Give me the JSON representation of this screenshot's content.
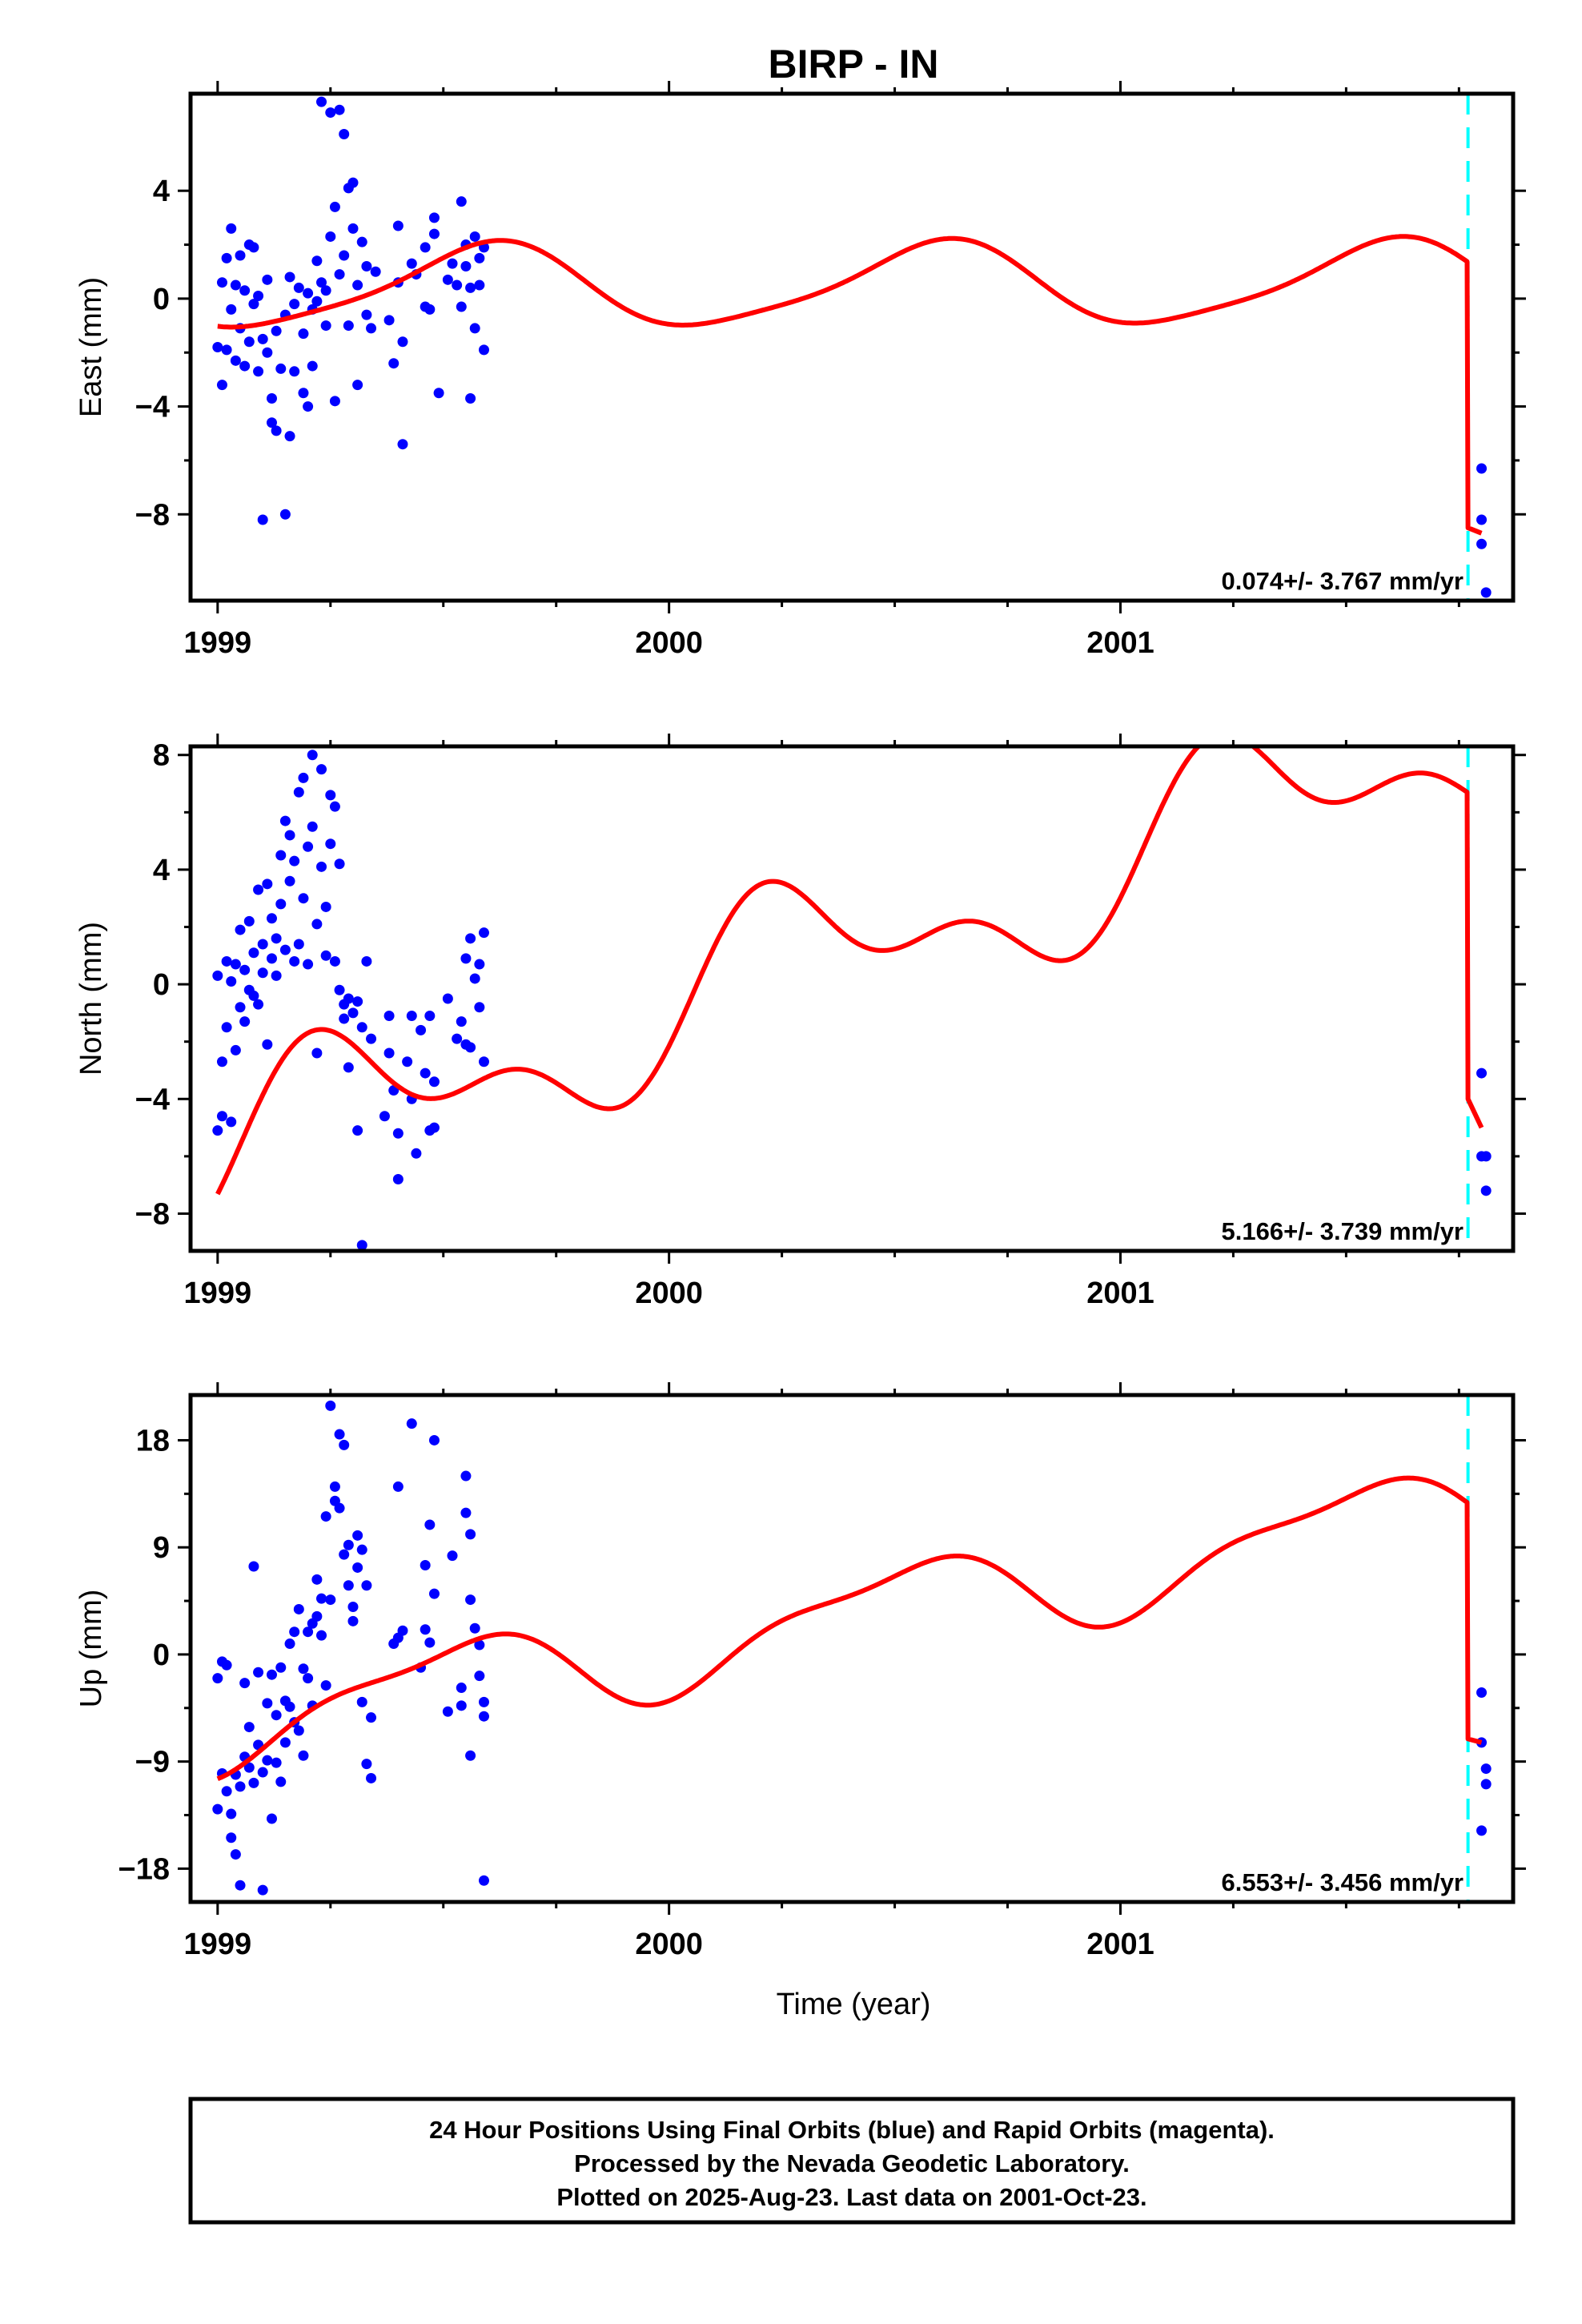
{
  "title": "BIRP - IN",
  "xlabel": "Time (year)",
  "x_tick_labels": [
    "1999",
    "2000",
    "2001"
  ],
  "footer": {
    "line1": "24 Hour Positions Using Final Orbits (blue) and Rapid Orbits (magenta).",
    "line2": "Processed by the Nevada Geodetic Laboratory.",
    "line3": "Plotted on 2025-Aug-23. Last data on 2001-Oct-23."
  },
  "colors": {
    "final_orbits": "#0000ff",
    "model": "#ff0000",
    "event": "#00ffff",
    "frame": "#000000"
  },
  "chart_data": [
    {
      "type": "scatter",
      "component": "East",
      "ylabel": "East (mm)",
      "xlim": [
        1998.94,
        2001.87
      ],
      "ylim": [
        -11.2,
        7.6
      ],
      "yticks": [
        -8,
        -4,
        0,
        4
      ],
      "ytick_labels": [
        "−8",
        "−4",
        "0",
        "4"
      ],
      "rate_label": "0.074+/- 3.767 mm/yr",
      "event_x": 2001.77,
      "points": [
        [
          1999.0,
          -1.8
        ],
        [
          1999.01,
          0.6
        ],
        [
          1999.01,
          -3.2
        ],
        [
          1999.02,
          -1.9
        ],
        [
          1999.02,
          1.5
        ],
        [
          1999.03,
          2.6
        ],
        [
          1999.03,
          -0.4
        ],
        [
          1999.04,
          0.5
        ],
        [
          1999.04,
          -2.3
        ],
        [
          1999.05,
          1.6
        ],
        [
          1999.05,
          -1.1
        ],
        [
          1999.06,
          0.3
        ],
        [
          1999.06,
          -2.5
        ],
        [
          1999.07,
          2.0
        ],
        [
          1999.07,
          -1.6
        ],
        [
          1999.08,
          -0.2
        ],
        [
          1999.08,
          1.9
        ],
        [
          1999.09,
          -2.7
        ],
        [
          1999.09,
          0.1
        ],
        [
          1999.1,
          -1.5
        ],
        [
          1999.1,
          -8.2
        ],
        [
          1999.11,
          -2.0
        ],
        [
          1999.11,
          0.7
        ],
        [
          1999.12,
          -3.7
        ],
        [
          1999.12,
          -4.6
        ],
        [
          1999.13,
          -1.2
        ],
        [
          1999.13,
          -4.9
        ],
        [
          1999.14,
          -2.6
        ],
        [
          1999.15,
          -8.0
        ],
        [
          1999.15,
          -0.6
        ],
        [
          1999.16,
          -5.1
        ],
        [
          1999.16,
          0.8
        ],
        [
          1999.17,
          -2.7
        ],
        [
          1999.17,
          -0.2
        ],
        [
          1999.18,
          0.4
        ],
        [
          1999.19,
          -1.3
        ],
        [
          1999.19,
          -3.5
        ],
        [
          1999.2,
          0.2
        ],
        [
          1999.2,
          -4.0
        ],
        [
          1999.21,
          -0.4
        ],
        [
          1999.21,
          -2.5
        ],
        [
          1999.22,
          1.4
        ],
        [
          1999.22,
          -0.1
        ],
        [
          1999.23,
          0.6
        ],
        [
          1999.23,
          7.3
        ],
        [
          1999.24,
          0.3
        ],
        [
          1999.24,
          -1.0
        ],
        [
          1999.25,
          6.9
        ],
        [
          1999.25,
          2.3
        ],
        [
          1999.26,
          3.4
        ],
        [
          1999.26,
          -3.8
        ],
        [
          1999.27,
          0.9
        ],
        [
          1999.27,
          7.0
        ],
        [
          1999.28,
          1.6
        ],
        [
          1999.28,
          6.1
        ],
        [
          1999.29,
          4.1
        ],
        [
          1999.29,
          -1.0
        ],
        [
          1999.3,
          2.6
        ],
        [
          1999.3,
          4.3
        ],
        [
          1999.31,
          -3.2
        ],
        [
          1999.31,
          0.5
        ],
        [
          1999.32,
          2.1
        ],
        [
          1999.33,
          -0.6
        ],
        [
          1999.33,
          1.2
        ],
        [
          1999.34,
          -1.1
        ],
        [
          1999.35,
          1.0
        ],
        [
          1999.38,
          -0.8
        ],
        [
          1999.39,
          -2.4
        ],
        [
          1999.4,
          2.7
        ],
        [
          1999.4,
          0.6
        ],
        [
          1999.41,
          -5.4
        ],
        [
          1999.41,
          -1.6
        ],
        [
          1999.43,
          1.3
        ],
        [
          1999.44,
          0.9
        ],
        [
          1999.46,
          1.9
        ],
        [
          1999.46,
          -0.3
        ],
        [
          1999.47,
          -0.4
        ],
        [
          1999.48,
          3.0
        ],
        [
          1999.48,
          2.4
        ],
        [
          1999.49,
          -3.5
        ],
        [
          1999.51,
          0.7
        ],
        [
          1999.52,
          1.3
        ],
        [
          1999.53,
          0.5
        ],
        [
          1999.54,
          -0.3
        ],
        [
          1999.54,
          3.6
        ],
        [
          1999.55,
          1.2
        ],
        [
          1999.55,
          2.0
        ],
        [
          1999.56,
          -3.7
        ],
        [
          1999.56,
          0.4
        ],
        [
          1999.57,
          -1.1
        ],
        [
          1999.57,
          2.3
        ],
        [
          1999.58,
          1.5
        ],
        [
          1999.58,
          0.5
        ],
        [
          1999.59,
          -1.9
        ],
        [
          1999.59,
          1.9
        ],
        [
          2001.8,
          -6.3
        ],
        [
          2001.8,
          -8.2
        ],
        [
          2001.8,
          -9.1
        ],
        [
          2001.81,
          -10.9
        ]
      ],
      "model_before": {
        "offset": 0.45,
        "slope": 0.074,
        "sin1": -0.85,
        "cos1": -1.25,
        "sin2": 0.25,
        "cos2": -0.15
      },
      "model_after": {
        "x": [
          2001.77,
          2001.8
        ],
        "y": [
          -8.5,
          -8.7
        ]
      }
    },
    {
      "type": "scatter",
      "component": "North",
      "ylabel": "North (mm)",
      "xlim": [
        1998.94,
        2001.87
      ],
      "ylim": [
        -9.3,
        8.3
      ],
      "yticks": [
        -8,
        -4,
        0,
        4,
        8
      ],
      "ytick_labels": [
        "−8",
        "−4",
        "0",
        "4",
        "8"
      ],
      "rate_label": "5.166+/- 3.739 mm/yr",
      "event_x": 2001.77,
      "points": [
        [
          1999.0,
          -5.1
        ],
        [
          1999.0,
          0.3
        ],
        [
          1999.01,
          -2.7
        ],
        [
          1999.01,
          -4.6
        ],
        [
          1999.02,
          -1.5
        ],
        [
          1999.02,
          0.8
        ],
        [
          1999.03,
          -4.8
        ],
        [
          1999.03,
          0.1
        ],
        [
          1999.04,
          -2.3
        ],
        [
          1999.04,
          0.7
        ],
        [
          1999.05,
          -0.8
        ],
        [
          1999.05,
          1.9
        ],
        [
          1999.06,
          -1.3
        ],
        [
          1999.06,
          0.5
        ],
        [
          1999.07,
          -0.2
        ],
        [
          1999.07,
          2.2
        ],
        [
          1999.08,
          -0.4
        ],
        [
          1999.08,
          1.1
        ],
        [
          1999.09,
          -0.7
        ],
        [
          1999.09,
          3.3
        ],
        [
          1999.1,
          0.4
        ],
        [
          1999.1,
          1.4
        ],
        [
          1999.11,
          -2.1
        ],
        [
          1999.11,
          3.5
        ],
        [
          1999.12,
          0.9
        ],
        [
          1999.12,
          2.3
        ],
        [
          1999.13,
          1.6
        ],
        [
          1999.13,
          0.3
        ],
        [
          1999.14,
          4.5
        ],
        [
          1999.14,
          2.8
        ],
        [
          1999.15,
          1.2
        ],
        [
          1999.15,
          5.7
        ],
        [
          1999.16,
          3.6
        ],
        [
          1999.16,
          5.2
        ],
        [
          1999.17,
          0.8
        ],
        [
          1999.17,
          4.3
        ],
        [
          1999.18,
          6.7
        ],
        [
          1999.18,
          1.4
        ],
        [
          1999.19,
          7.2
        ],
        [
          1999.19,
          3.0
        ],
        [
          1999.2,
          4.8
        ],
        [
          1999.2,
          0.7
        ],
        [
          1999.21,
          8.0
        ],
        [
          1999.21,
          5.5
        ],
        [
          1999.22,
          2.1
        ],
        [
          1999.22,
          -2.4
        ],
        [
          1999.23,
          7.5
        ],
        [
          1999.23,
          4.1
        ],
        [
          1999.24,
          2.7
        ],
        [
          1999.24,
          1.0
        ],
        [
          1999.25,
          4.9
        ],
        [
          1999.25,
          6.6
        ],
        [
          1999.26,
          0.8
        ],
        [
          1999.26,
          6.2
        ],
        [
          1999.27,
          4.2
        ],
        [
          1999.27,
          -0.2
        ],
        [
          1999.28,
          -1.2
        ],
        [
          1999.28,
          -0.7
        ],
        [
          1999.29,
          -2.9
        ],
        [
          1999.29,
          -0.5
        ],
        [
          1999.3,
          -1.0
        ],
        [
          1999.31,
          -0.6
        ],
        [
          1999.31,
          -5.1
        ],
        [
          1999.32,
          -9.1
        ],
        [
          1999.32,
          -1.5
        ],
        [
          1999.33,
          0.8
        ],
        [
          1999.34,
          -1.9
        ],
        [
          1999.37,
          -4.6
        ],
        [
          1999.38,
          -1.1
        ],
        [
          1999.38,
          -2.4
        ],
        [
          1999.39,
          -3.7
        ],
        [
          1999.4,
          -6.8
        ],
        [
          1999.4,
          -5.2
        ],
        [
          1999.42,
          -2.7
        ],
        [
          1999.43,
          -1.1
        ],
        [
          1999.43,
          -4.0
        ],
        [
          1999.44,
          -5.9
        ],
        [
          1999.45,
          -1.6
        ],
        [
          1999.46,
          -3.1
        ],
        [
          1999.47,
          -5.1
        ],
        [
          1999.47,
          -1.1
        ],
        [
          1999.48,
          -3.4
        ],
        [
          1999.48,
          -5.0
        ],
        [
          1999.51,
          -0.5
        ],
        [
          1999.53,
          -1.9
        ],
        [
          1999.54,
          -1.3
        ],
        [
          1999.55,
          0.9
        ],
        [
          1999.55,
          -2.1
        ],
        [
          1999.56,
          1.6
        ],
        [
          1999.56,
          -2.2
        ],
        [
          1999.57,
          0.2
        ],
        [
          1999.58,
          -0.8
        ],
        [
          1999.58,
          0.7
        ],
        [
          1999.59,
          -2.7
        ],
        [
          1999.59,
          1.8
        ],
        [
          2001.8,
          -3.1
        ],
        [
          2001.8,
          -6.0
        ],
        [
          2001.81,
          -7.2
        ],
        [
          2001.81,
          -6.0
        ]
      ],
      "model_before": {
        "offset": -0.85,
        "slope": 5.166,
        "sin1": 2.2,
        "cos1": -0.4,
        "sin2": 1.0,
        "cos2": -0.9
      },
      "model_after": {
        "x": [
          2001.77,
          2001.8
        ],
        "y": [
          -4.0,
          -5.0
        ]
      }
    },
    {
      "type": "scatter",
      "component": "Up",
      "ylabel": "Up (mm)",
      "xlim": [
        1998.94,
        2001.87
      ],
      "ylim": [
        -20.8,
        21.8
      ],
      "yticks": [
        -18,
        -9,
        0,
        9,
        18
      ],
      "ytick_labels": [
        "−18",
        "−9",
        "0",
        "9",
        "18"
      ],
      "rate_label": "6.553+/- 3.456 mm/yr",
      "event_x": 2001.77,
      "points": [
        [
          1999.0,
          -2.0
        ],
        [
          1999.0,
          -13.0
        ],
        [
          1999.01,
          -0.6
        ],
        [
          1999.01,
          -10.0
        ],
        [
          1999.02,
          -11.5
        ],
        [
          1999.02,
          -0.9
        ],
        [
          1999.03,
          -13.4
        ],
        [
          1999.03,
          -15.4
        ],
        [
          1999.04,
          -16.8
        ],
        [
          1999.04,
          -10.1
        ],
        [
          1999.05,
          -19.4
        ],
        [
          1999.05,
          -11.1
        ],
        [
          1999.06,
          -8.6
        ],
        [
          1999.06,
          -2.4
        ],
        [
          1999.07,
          -9.5
        ],
        [
          1999.07,
          -6.1
        ],
        [
          1999.08,
          -10.8
        ],
        [
          1999.08,
          7.4
        ],
        [
          1999.09,
          -1.5
        ],
        [
          1999.09,
          -7.6
        ],
        [
          1999.1,
          -9.9
        ],
        [
          1999.1,
          -19.8
        ],
        [
          1999.11,
          -8.9
        ],
        [
          1999.11,
          -4.1
        ],
        [
          1999.12,
          -13.8
        ],
        [
          1999.12,
          -1.7
        ],
        [
          1999.13,
          -9.1
        ],
        [
          1999.13,
          -5.1
        ],
        [
          1999.14,
          -10.7
        ],
        [
          1999.14,
          -1.1
        ],
        [
          1999.15,
          -7.4
        ],
        [
          1999.15,
          -3.9
        ],
        [
          1999.16,
          -4.4
        ],
        [
          1999.16,
          0.9
        ],
        [
          1999.17,
          -5.7
        ],
        [
          1999.17,
          1.9
        ],
        [
          1999.18,
          -6.4
        ],
        [
          1999.18,
          3.8
        ],
        [
          1999.19,
          -1.2
        ],
        [
          1999.19,
          -8.5
        ],
        [
          1999.2,
          1.9
        ],
        [
          1999.2,
          -2.0
        ],
        [
          1999.21,
          2.6
        ],
        [
          1999.21,
          -4.3
        ],
        [
          1999.22,
          3.2
        ],
        [
          1999.22,
          6.3
        ],
        [
          1999.23,
          1.6
        ],
        [
          1999.23,
          4.7
        ],
        [
          1999.24,
          11.6
        ],
        [
          1999.24,
          -2.6
        ],
        [
          1999.25,
          4.6
        ],
        [
          1999.25,
          20.9
        ],
        [
          1999.26,
          14.1
        ],
        [
          1999.26,
          12.9
        ],
        [
          1999.27,
          18.5
        ],
        [
          1999.27,
          12.3
        ],
        [
          1999.28,
          17.6
        ],
        [
          1999.28,
          8.4
        ],
        [
          1999.29,
          5.8
        ],
        [
          1999.29,
          9.2
        ],
        [
          1999.3,
          2.8
        ],
        [
          1999.3,
          4.0
        ],
        [
          1999.31,
          7.3
        ],
        [
          1999.31,
          10.0
        ],
        [
          1999.32,
          -4.0
        ],
        [
          1999.32,
          8.8
        ],
        [
          1999.33,
          -9.2
        ],
        [
          1999.33,
          5.8
        ],
        [
          1999.34,
          -10.4
        ],
        [
          1999.34,
          -5.3
        ],
        [
          1999.39,
          0.9
        ],
        [
          1999.4,
          14.1
        ],
        [
          1999.4,
          1.4
        ],
        [
          1999.41,
          2.0
        ],
        [
          1999.43,
          19.4
        ],
        [
          1999.45,
          -1.1
        ],
        [
          1999.46,
          2.1
        ],
        [
          1999.46,
          7.5
        ],
        [
          1999.47,
          10.9
        ],
        [
          1999.47,
          1.0
        ],
        [
          1999.48,
          18.0
        ],
        [
          1999.48,
          5.1
        ],
        [
          1999.51,
          -4.8
        ],
        [
          1999.52,
          8.3
        ],
        [
          1999.54,
          -2.8
        ],
        [
          1999.54,
          -4.3
        ],
        [
          1999.55,
          11.9
        ],
        [
          1999.55,
          15.0
        ],
        [
          1999.56,
          4.6
        ],
        [
          1999.56,
          10.1
        ],
        [
          1999.56,
          -8.5
        ],
        [
          1999.57,
          2.2
        ],
        [
          1999.58,
          0.8
        ],
        [
          1999.58,
          -1.8
        ],
        [
          1999.59,
          -4.0
        ],
        [
          1999.59,
          -19.0
        ],
        [
          1999.59,
          -5.2
        ],
        [
          2001.8,
          -3.2
        ],
        [
          2001.8,
          -7.4
        ],
        [
          2001.81,
          -9.6
        ],
        [
          2001.81,
          -10.9
        ],
        [
          2001.8,
          -14.8
        ]
      ],
      "model_before": {
        "offset": 0.6,
        "slope": 6.553,
        "sin1": -0.3,
        "cos1": -3.6,
        "sin2": 0.8,
        "cos2": -0.9
      },
      "model_after": {
        "x": [
          2001.77,
          2001.8
        ],
        "y": [
          -7.1,
          -7.4
        ]
      }
    }
  ]
}
